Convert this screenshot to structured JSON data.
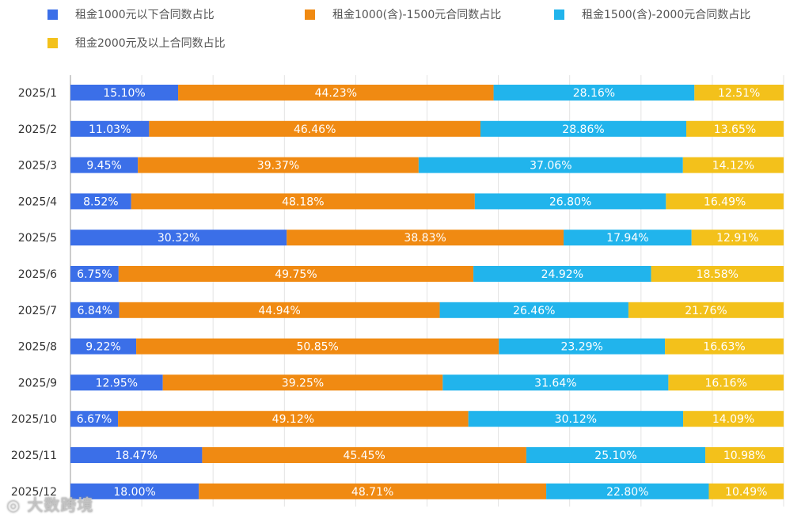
{
  "chart_data": {
    "type": "bar",
    "orientation": "horizontal",
    "stacked": true,
    "categories": [
      "2025/1",
      "2025/2",
      "2025/3",
      "2025/4",
      "2025/5",
      "2025/6",
      "2025/7",
      "2025/8",
      "2025/9",
      "2025/10",
      "2025/11",
      "2025/12"
    ],
    "series": [
      {
        "name": "租金1000元以下合同数占比",
        "color": "#3b6fe8",
        "values": [
          15.1,
          11.03,
          9.45,
          8.52,
          30.32,
          6.75,
          6.84,
          9.22,
          12.95,
          6.67,
          18.47,
          18.0
        ]
      },
      {
        "name": "租金1000(含)-1500元合同数占比",
        "color": "#f08a12",
        "values": [
          44.23,
          46.46,
          39.37,
          48.18,
          38.83,
          49.75,
          44.94,
          50.85,
          39.25,
          49.12,
          45.45,
          48.71
        ]
      },
      {
        "name": "租金1500(含)-2000元合同数占比",
        "color": "#21b4ec",
        "values": [
          28.16,
          28.86,
          37.06,
          26.8,
          17.94,
          24.92,
          26.46,
          23.29,
          31.64,
          30.12,
          25.1,
          22.8
        ]
      },
      {
        "name": "租金2000元及以上合同数占比",
        "color": "#f3c11b",
        "values": [
          12.51,
          13.65,
          14.12,
          16.49,
          12.91,
          18.58,
          21.76,
          16.63,
          16.16,
          14.09,
          10.98,
          10.49
        ]
      }
    ],
    "xlim": [
      0,
      100
    ],
    "grid": true,
    "legend": "top",
    "data_labels": "percent, 2 decimals"
  },
  "watermark": "大数跨境"
}
